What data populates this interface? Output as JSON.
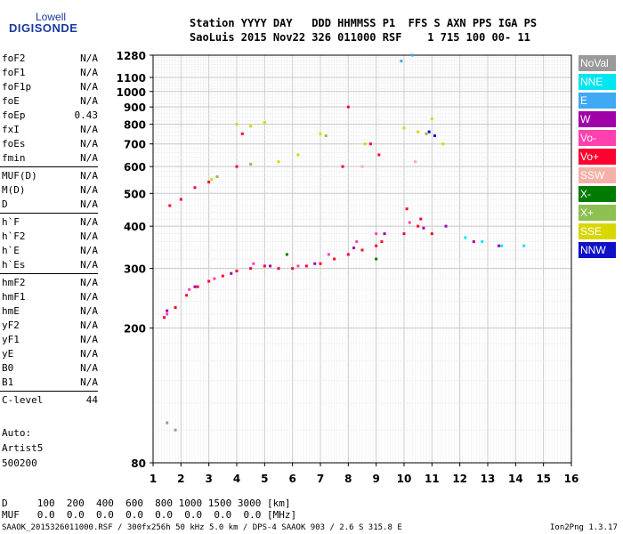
{
  "logo": {
    "line1": "Lowell",
    "line2": "DIGISONDE"
  },
  "header": {
    "labels_line": "Station YYYY DAY   DDD HHMMSS P1  FFS S AXN PPS IGA PS",
    "values_line": "SaoLuis 2015 Nov22 326 011000 RSF    1 715 100 00- 11"
  },
  "params": [
    {
      "name": "foF2",
      "value": "N/A"
    },
    {
      "name": "foF1",
      "value": "N/A"
    },
    {
      "name": "foF1p",
      "value": "N/A"
    },
    {
      "name": "foE",
      "value": "N/A"
    },
    {
      "name": "foEp",
      "value": "0.43"
    },
    {
      "name": "fxI",
      "value": "N/A"
    },
    {
      "name": "foEs",
      "value": "N/A"
    },
    {
      "name": "fmin",
      "value": "N/A"
    },
    {
      "name": "MUF(D)",
      "value": "N/A"
    },
    {
      "name": "M(D)",
      "value": "N/A"
    },
    {
      "name": "D",
      "value": "N/A"
    },
    {
      "name": "h`F",
      "value": "N/A"
    },
    {
      "name": "h`F2",
      "value": "N/A"
    },
    {
      "name": "h`E",
      "value": "N/A"
    },
    {
      "name": "h`Es",
      "value": "N/A"
    },
    {
      "name": "hmF2",
      "value": "N/A"
    },
    {
      "name": "hmF1",
      "value": "N/A"
    },
    {
      "name": "hmE",
      "value": "N/A"
    },
    {
      "name": "yF2",
      "value": "N/A"
    },
    {
      "name": "yF1",
      "value": "N/A"
    },
    {
      "name": "yE",
      "value": "N/A"
    },
    {
      "name": "B0",
      "value": "N/A"
    },
    {
      "name": "B1",
      "value": "N/A"
    },
    {
      "name": "C-level",
      "value": "44"
    }
  ],
  "auto": {
    "line1": "Auto:",
    "line2": "Artist5",
    "line3": "500200"
  },
  "legend": [
    {
      "label": "NoVal",
      "color": "#9a9a9a"
    },
    {
      "label": "NNE",
      "color": "#00e5f0"
    },
    {
      "label": "E",
      "color": "#3fa9f5"
    },
    {
      "label": "W",
      "color": "#a000a8"
    },
    {
      "label": "Vo-",
      "color": "#ff40b0"
    },
    {
      "label": "Vo+",
      "color": "#ff0030"
    },
    {
      "label": "SSW",
      "color": "#f5b0a8"
    },
    {
      "label": "X-",
      "color": "#007a00"
    },
    {
      "label": "X+",
      "color": "#8cc050"
    },
    {
      "label": "SSE",
      "color": "#d8d800"
    },
    {
      "label": "NNW",
      "color": "#1010c8"
    }
  ],
  "chart_data": {
    "type": "scatter",
    "xlabel": "",
    "ylabel": "",
    "xlim": [
      1,
      16
    ],
    "x_ticks": [
      1,
      2,
      3,
      4,
      5,
      6,
      7,
      8,
      9,
      10,
      11,
      12,
      13,
      14,
      15,
      16
    ],
    "y_axis_scale": "log",
    "y_ticks": [
      80,
      200,
      300,
      400,
      500,
      600,
      700,
      800,
      900,
      1000,
      1100,
      1280
    ],
    "ylim": [
      80,
      1280
    ],
    "grid": true,
    "series": [
      {
        "name": "Vo+",
        "points": [
          [
            1.4,
            215
          ],
          [
            1.8,
            230
          ],
          [
            2.2,
            250
          ],
          [
            2.6,
            265
          ],
          [
            3.0,
            275
          ],
          [
            3.5,
            285
          ],
          [
            4.0,
            295
          ],
          [
            4.5,
            300
          ],
          [
            5.0,
            305
          ],
          [
            5.5,
            300
          ],
          [
            6.0,
            300
          ],
          [
            6.5,
            305
          ],
          [
            7.0,
            310
          ],
          [
            7.5,
            320
          ],
          [
            8.0,
            330
          ],
          [
            8.5,
            340
          ],
          [
            9.0,
            350
          ],
          [
            9.2,
            360
          ],
          [
            10.0,
            380
          ],
          [
            10.5,
            400
          ],
          [
            11.0,
            380
          ],
          [
            1.6,
            460
          ],
          [
            2.0,
            480
          ],
          [
            2.5,
            520
          ],
          [
            3.0,
            540
          ],
          [
            4.0,
            600
          ],
          [
            4.2,
            750
          ],
          [
            7.8,
            600
          ],
          [
            8.0,
            900
          ],
          [
            8.8,
            700
          ],
          [
            9.1,
            650
          ],
          [
            10.1,
            450
          ],
          [
            10.6,
            420
          ]
        ]
      },
      {
        "name": "Vo-",
        "points": [
          [
            1.5,
            220
          ],
          [
            2.3,
            260
          ],
          [
            3.2,
            280
          ],
          [
            4.6,
            310
          ],
          [
            6.2,
            305
          ],
          [
            7.3,
            330
          ],
          [
            8.3,
            360
          ],
          [
            9.0,
            380
          ],
          [
            10.2,
            410
          ]
        ]
      },
      {
        "name": "W",
        "points": [
          [
            1.5,
            225
          ],
          [
            2.5,
            265
          ],
          [
            3.8,
            290
          ],
          [
            5.2,
            305
          ],
          [
            6.8,
            310
          ],
          [
            8.2,
            345
          ],
          [
            9.3,
            380
          ],
          [
            10.7,
            395
          ],
          [
            11.5,
            400
          ],
          [
            12.5,
            360
          ],
          [
            13.4,
            350
          ]
        ]
      },
      {
        "name": "SSE",
        "points": [
          [
            3.1,
            550
          ],
          [
            4.0,
            800
          ],
          [
            4.5,
            790
          ],
          [
            5.0,
            810
          ],
          [
            5.5,
            620
          ],
          [
            6.2,
            650
          ],
          [
            7.0,
            750
          ],
          [
            8.6,
            700
          ],
          [
            10.0,
            780
          ],
          [
            10.5,
            760
          ],
          [
            11.0,
            830
          ],
          [
            11.4,
            700
          ]
        ]
      },
      {
        "name": "X+",
        "points": [
          [
            3.3,
            560
          ],
          [
            4.5,
            610
          ],
          [
            7.2,
            740
          ],
          [
            10.8,
            750
          ]
        ]
      },
      {
        "name": "NNE",
        "points": [
          [
            12.2,
            370
          ],
          [
            12.8,
            360
          ],
          [
            13.5,
            350
          ],
          [
            14.3,
            350
          ]
        ]
      },
      {
        "name": "E",
        "points": [
          [
            10.3,
            1280
          ],
          [
            9.9,
            1230
          ]
        ]
      },
      {
        "name": "NNW",
        "points": [
          [
            10.9,
            760
          ],
          [
            11.1,
            740
          ]
        ]
      },
      {
        "name": "X-",
        "points": [
          [
            5.8,
            330
          ],
          [
            9.0,
            320
          ]
        ]
      },
      {
        "name": "NoVal",
        "points": [
          [
            1.5,
            105
          ],
          [
            1.8,
            100
          ]
        ]
      },
      {
        "name": "SSW",
        "points": [
          [
            8.5,
            600
          ],
          [
            10.4,
            620
          ]
        ]
      }
    ]
  },
  "bottom": {
    "d_line": "D     100  200  400  600  800 1000 1500 3000 [km]",
    "muf_line": "MUF   0.0  0.0  0.0  0.0  0.0  0.0  0.0  0.0 [MHz]",
    "footer": "SAAOK_2015326011000.RSF / 300fx256h 50 kHz 5.0 km / DPS-4 SAAOK 903 / 2.6 S 315.8 E",
    "version": "Ion2Png 1.3.17"
  }
}
